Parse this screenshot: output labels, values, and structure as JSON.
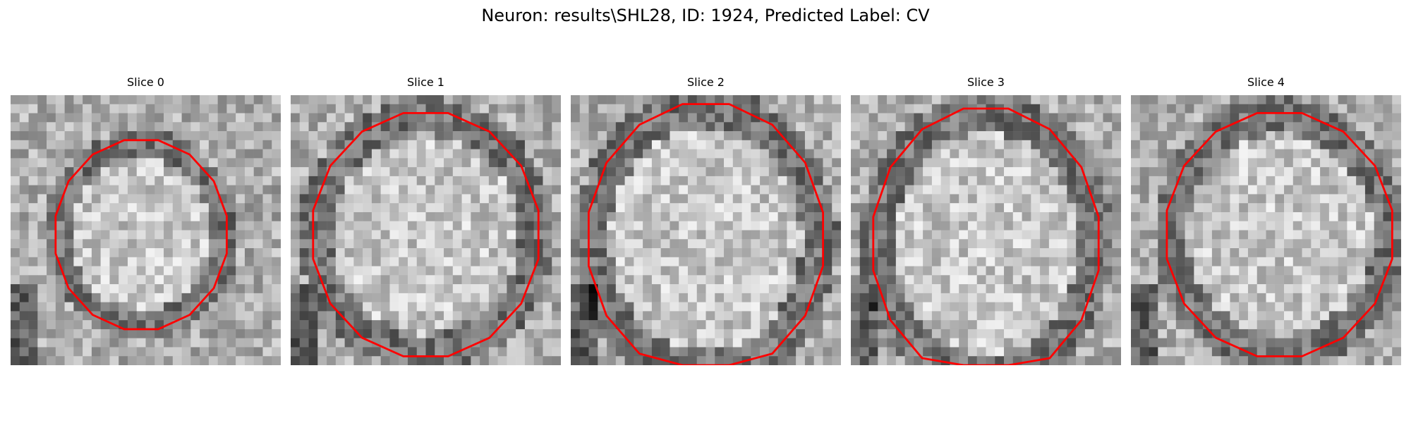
{
  "figure": {
    "title": "Neuron: results\\SHL28, ID: 1924, Predicted Label: CV",
    "panels": [
      {
        "title": "Slice 0",
        "seed": 11,
        "contour": "cv"
      },
      {
        "title": "Slice 1",
        "seed": 23,
        "contour": "cv"
      },
      {
        "title": "Slice 2",
        "seed": 37,
        "contour": "cv"
      },
      {
        "title": "Slice 3",
        "seed": 41,
        "contour": "cv"
      },
      {
        "title": "Slice 4",
        "seed": 53,
        "contour": "cv"
      }
    ],
    "colors": {
      "contour": "#ff0000",
      "pixel_min": "#000000",
      "pixel_max": "#ffffff"
    },
    "colormap": "gray"
  }
}
